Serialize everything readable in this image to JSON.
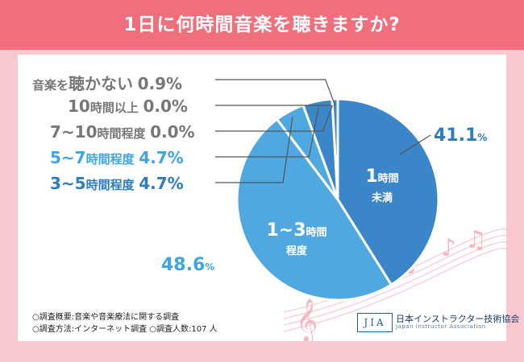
{
  "title": "1日に何時間音楽を聴きますか?",
  "colors": {
    "header": "#ef6f7d",
    "background": "#f7c9cf",
    "slice_dark": "#3a86c8",
    "slice_light": "#4fa8e0",
    "gray_text": "#777777",
    "blue_text": "#2b7cc0",
    "light_blue_text": "#3fa4e2"
  },
  "chart_data": {
    "type": "pie",
    "title": "1日に何時間音楽を聴きますか?",
    "slices": [
      {
        "label": "1時間未満",
        "value": 41.1
      },
      {
        "label": "1~3時間程度",
        "value": 48.6
      },
      {
        "label": "3~5時間程度",
        "value": 4.7
      },
      {
        "label": "5~7時間程度",
        "value": 4.7
      },
      {
        "label": "7~10時間程度",
        "value": 0.0
      },
      {
        "label": "10時間以上",
        "value": 0.0
      },
      {
        "label": "音楽を聴かない",
        "value": 0.9
      }
    ]
  },
  "inner_labels": {
    "slice1_line1": "1",
    "slice1_line1_suffix": "時間",
    "slice1_line2": "未満",
    "slice2_line1": "1~3",
    "slice2_line1_suffix": "時間",
    "slice2_line2": "程度"
  },
  "pct_labels": {
    "slice1_num": "41.1",
    "slice2_num": "48.6",
    "pct_sign": "%"
  },
  "legend": [
    {
      "prefix": "音楽を",
      "big": "聴かない",
      "value": "0.9%"
    },
    {
      "prefix": "",
      "big": "10",
      "mid": "時間以上",
      "value": "0.0%"
    },
    {
      "prefix": "",
      "big": "7~10",
      "mid": "時間程度",
      "value": "0.0%"
    },
    {
      "prefix": "",
      "big": "5~7",
      "mid": "時間程度",
      "value": "4.7%"
    },
    {
      "prefix": "",
      "big": "3~5",
      "mid": "時間程度",
      "value": "4.7%"
    }
  ],
  "notes": {
    "line1": "○調査概要:音楽や音楽療法に関する調査",
    "line2": "○調査方法:インターネット調査 ○調査人数:107 人"
  },
  "logo": {
    "mark": "JIA",
    "name": "日本インストラクター技術協会",
    "english": "Japan Instructor Association"
  }
}
